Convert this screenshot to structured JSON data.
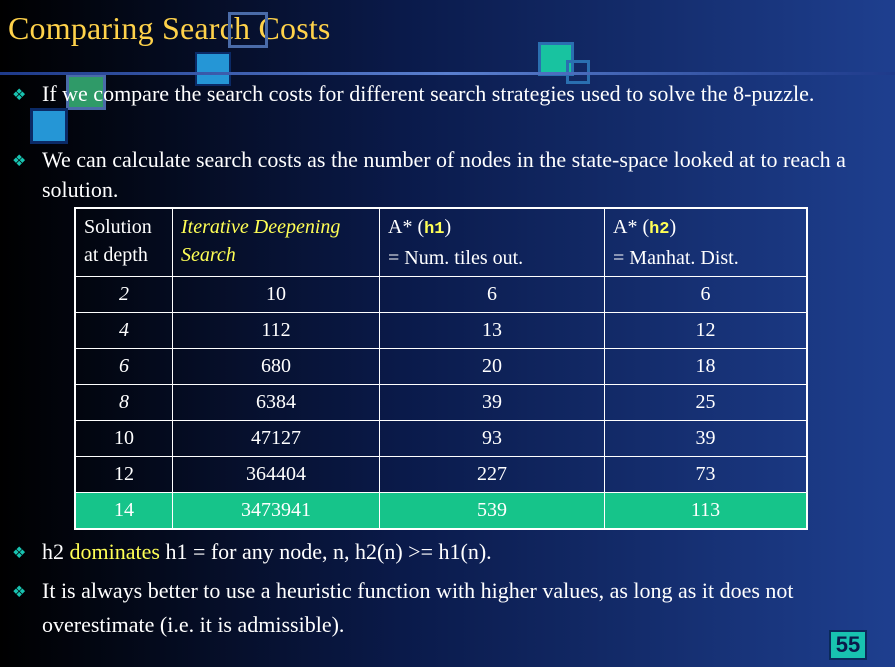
{
  "slide": {
    "title": "Comparing Search Costs",
    "page_number": "55",
    "colors": {
      "title": "#ffd24a",
      "accent": "#18c3b0",
      "highlight_row": "#16c48a",
      "keyword": "#ffff55"
    }
  },
  "bullets": [
    {
      "text": "If we compare the search costs for different search strategies used to solve the 8-puzzle."
    },
    {
      "text": "We can calculate search costs as the number of nodes in the state-space looked at to reach a solution."
    },
    {
      "pre": "h2 ",
      "keyword": "dominates",
      "post": " h1 = for any node, n, h2(n) >= h1(n)."
    },
    {
      "text": "It is always better to use a heuristic function with higher values, as long as it does not overestimate (i.e. it is admissible)."
    }
  ],
  "table": {
    "headers": {
      "depth_line1": "Solution",
      "depth_line2": "at depth",
      "ids": "Iterative Deepening Search",
      "h1_prefix": "A* (",
      "h1_name": "h1",
      "h1_suffix": ")",
      "h1_sub": "= Num. tiles out.",
      "h2_prefix": "A* (",
      "h2_name": "h2",
      "h2_suffix": ")",
      "h2_sub": "= Manhat. Dist."
    },
    "rows": [
      {
        "depth": "2",
        "ids": "10",
        "h1": "6",
        "h2": "6"
      },
      {
        "depth": "4",
        "ids": "112",
        "h1": "13",
        "h2": "12"
      },
      {
        "depth": "6",
        "ids": "680",
        "h1": "20",
        "h2": "18"
      },
      {
        "depth": "8",
        "ids": "6384",
        "h1": "39",
        "h2": "25"
      },
      {
        "depth": "10",
        "ids": "47127",
        "h1": "93",
        "h2": "39"
      },
      {
        "depth": "12",
        "ids": "364404",
        "h1": "227",
        "h2": "73"
      },
      {
        "depth": "14",
        "ids": "3473941",
        "h1": "539",
        "h2": "113"
      }
    ]
  }
}
